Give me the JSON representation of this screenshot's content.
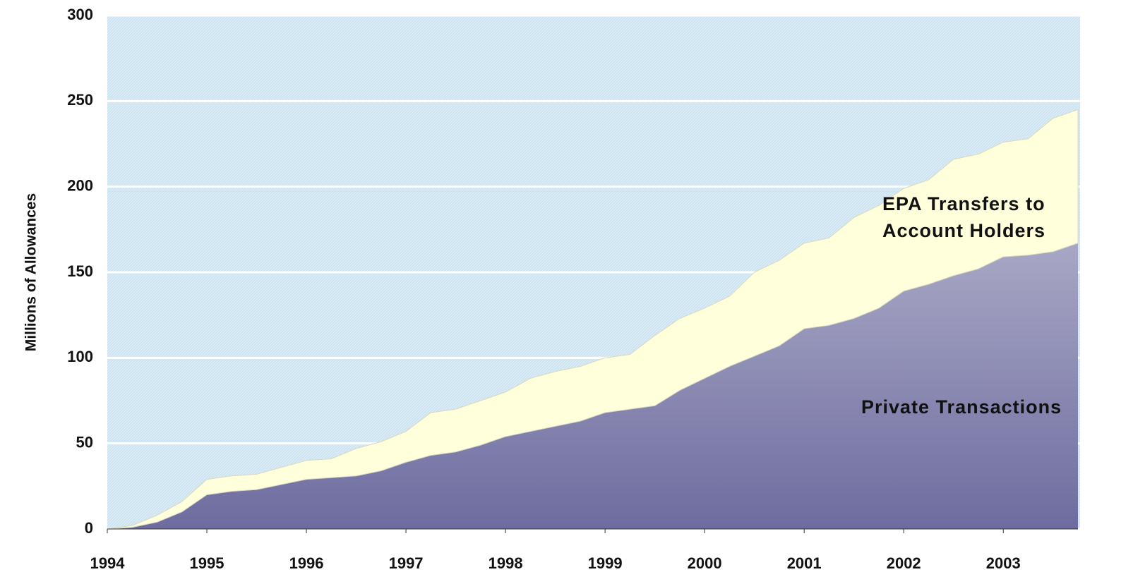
{
  "chart_data": {
    "type": "stacked-area",
    "y_label": "Millions of Allowances",
    "x": [
      1994,
      1994.25,
      1994.5,
      1994.75,
      1995,
      1995.25,
      1995.5,
      1995.75,
      1996,
      1996.25,
      1996.5,
      1996.75,
      1997,
      1997.25,
      1997.5,
      1997.75,
      1998,
      1998.25,
      1998.5,
      1998.75,
      1999,
      1999.25,
      1999.5,
      1999.75,
      2000,
      2000.25,
      2000.5,
      2000.75,
      2001,
      2001.25,
      2001.5,
      2001.75,
      2002,
      2002.25,
      2002.5,
      2002.75,
      2003,
      2003.25,
      2003.5,
      2003.75
    ],
    "series": [
      {
        "name": "Private Transactions",
        "color": "#6e6c9f",
        "values": [
          0,
          1,
          4,
          10,
          20,
          22,
          23,
          26,
          29,
          30,
          31,
          34,
          39,
          43,
          45,
          49,
          54,
          57,
          60,
          63,
          68,
          70,
          72,
          81,
          88,
          95,
          101,
          107,
          117,
          119,
          123,
          129,
          139,
          143,
          148,
          152,
          159,
          160,
          162,
          167
        ]
      },
      {
        "name": "EPA Transfers to Account Holders",
        "color": "#ffffdc",
        "values": [
          0,
          1,
          4,
          6,
          9,
          9,
          9,
          10,
          11,
          11,
          16,
          17,
          18,
          25,
          25,
          26,
          26,
          31,
          32,
          32,
          32,
          32,
          41,
          42,
          41,
          41,
          49,
          50,
          50,
          51,
          59,
          60,
          60,
          61,
          68,
          67,
          67,
          68,
          78,
          78
        ]
      }
    ],
    "xlim": [
      1994,
      2003.75
    ],
    "xticks": [
      1994,
      1995,
      1996,
      1997,
      1998,
      1999,
      2000,
      2001,
      2002,
      2003
    ],
    "ylim": [
      0,
      300
    ],
    "yticks": [
      0,
      50,
      100,
      150,
      200,
      250,
      300
    ],
    "grid": true,
    "background": "#cfe4f1"
  }
}
